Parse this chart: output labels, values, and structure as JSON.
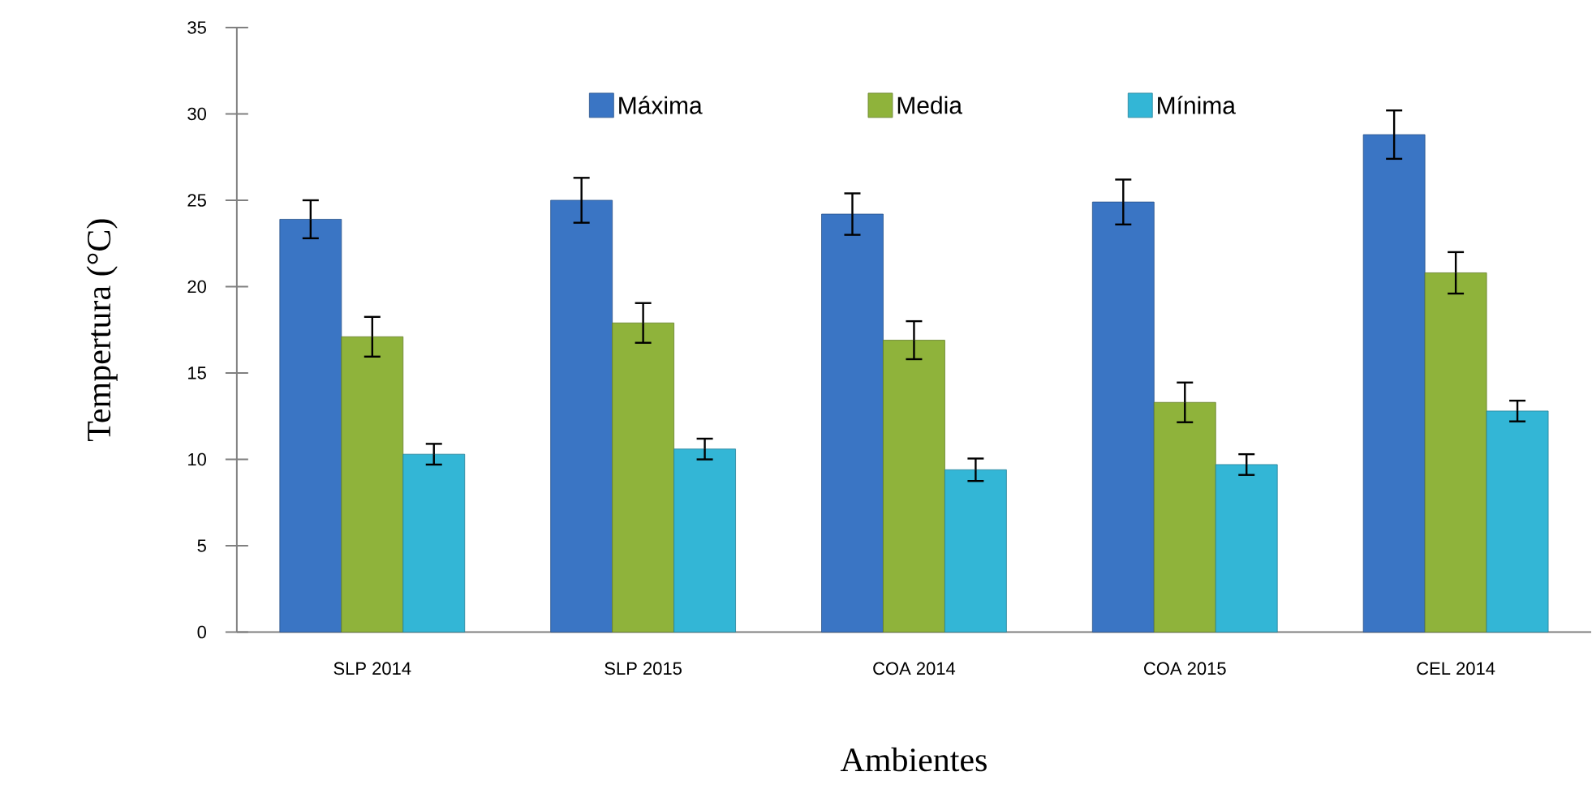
{
  "chart_data": {
    "type": "bar",
    "xlabel": "Ambientes",
    "ylabel": "Tempertura (°C)",
    "categories": [
      "SLP 2014",
      "SLP 2015",
      "COA 2014",
      "COA 2015",
      "CEL 2014"
    ],
    "series": [
      {
        "name": "Máxima",
        "color": "#3a75c4",
        "values": [
          23.9,
          25.0,
          24.2,
          24.9,
          28.8
        ],
        "errors": [
          1.1,
          1.3,
          1.2,
          1.3,
          1.4
        ]
      },
      {
        "name": "Media",
        "color": "#8fb33b",
        "values": [
          17.1,
          17.9,
          16.9,
          13.3,
          20.8
        ],
        "errors": [
          1.15,
          1.15,
          1.1,
          1.15,
          1.2
        ]
      },
      {
        "name": "Mínima",
        "color": "#33b6d6",
        "values": [
          10.3,
          10.6,
          9.4,
          9.7,
          12.8
        ],
        "errors": [
          0.6,
          0.6,
          0.65,
          0.6,
          0.6
        ]
      }
    ],
    "ylim": [
      0,
      35
    ],
    "yticks": [
      0,
      5,
      10,
      15,
      20,
      25,
      30,
      35
    ],
    "grid": false,
    "legend": "top"
  }
}
